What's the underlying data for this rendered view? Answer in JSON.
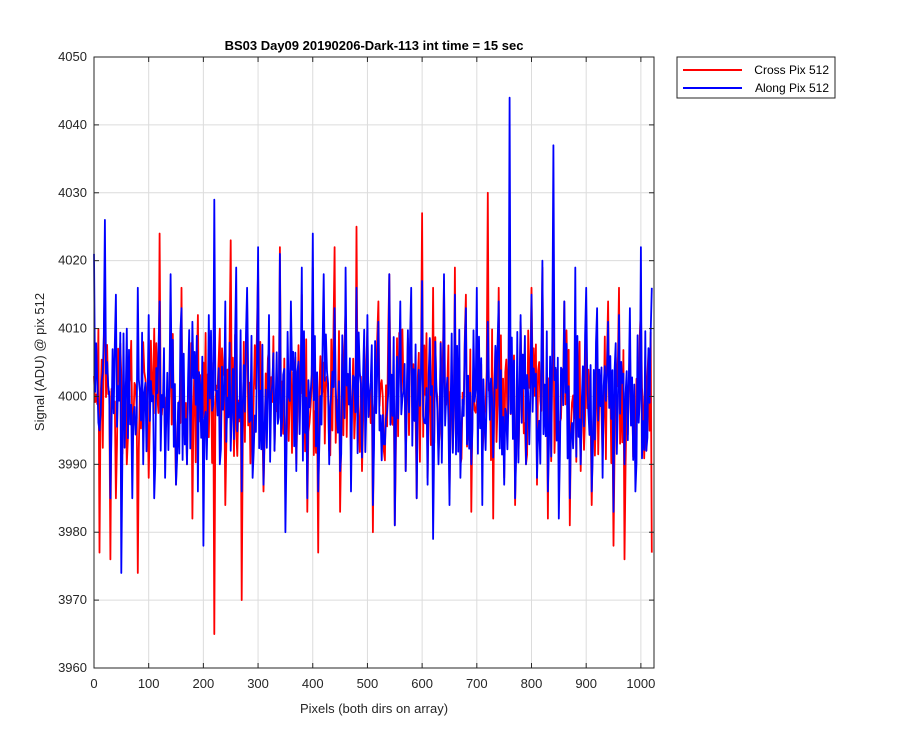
{
  "chart_data": {
    "type": "line",
    "title": "BS03 Day09 20190206-Dark-113 int time = 15 sec",
    "xlabel": "Pixels (both dirs on array)",
    "ylabel": "Signal (ADU) @ pix 512",
    "xlim": [
      0,
      1024
    ],
    "ylim": [
      3960,
      4050
    ],
    "x_ticks": [
      0,
      100,
      200,
      300,
      400,
      500,
      600,
      700,
      800,
      900,
      1000
    ],
    "y_ticks": [
      3960,
      3970,
      3980,
      3990,
      4000,
      4010,
      4020,
      4030,
      4040,
      4050
    ],
    "grid": true,
    "legend_location": "outside-top-right",
    "series": [
      {
        "name": "Cross Pix 512",
        "color": "#ff0000",
        "x": [
          0,
          10,
          20,
          30,
          40,
          50,
          60,
          70,
          80,
          90,
          100,
          110,
          120,
          130,
          140,
          150,
          160,
          170,
          180,
          190,
          200,
          210,
          220,
          230,
          240,
          250,
          260,
          270,
          280,
          290,
          300,
          310,
          320,
          330,
          340,
          350,
          360,
          370,
          380,
          390,
          400,
          410,
          420,
          430,
          440,
          450,
          460,
          470,
          480,
          490,
          500,
          510,
          520,
          530,
          540,
          550,
          560,
          570,
          580,
          590,
          600,
          610,
          620,
          630,
          640,
          650,
          660,
          670,
          680,
          690,
          700,
          710,
          720,
          730,
          740,
          750,
          760,
          770,
          780,
          790,
          800,
          810,
          820,
          830,
          840,
          850,
          860,
          870,
          880,
          890,
          900,
          910,
          920,
          930,
          940,
          950,
          960,
          970,
          980,
          990,
          1000,
          1010,
          1020
        ],
        "values": [
          4003,
          3977,
          4018,
          3976,
          3985,
          4003,
          3990,
          3995,
          3974,
          4008,
          3988,
          4010,
          4024,
          3992,
          4012,
          3987,
          4016,
          3990,
          3982,
          4012,
          4005,
          3994,
          3965,
          4010,
          3984,
          4023,
          3995,
          3970,
          4014,
          3990,
          4019,
          3986,
          4007,
          3992,
          4022,
          3985,
          4004,
          3990,
          4015,
          3983,
          4019,
          3977,
          4005,
          3992,
          4022,
          3983,
          4013,
          3991,
          4025,
          3989,
          4010,
          3980,
          4014,
          3992,
          4018,
          3981,
          4006,
          3989,
          4011,
          3985,
          4027,
          3988,
          4016,
          3992,
          4017,
          3985,
          4019,
          3990,
          4015,
          3983,
          3999,
          3991,
          4030,
          3982,
          4016,
          3988,
          4019,
          3984,
          4011,
          3990,
          4016,
          3987,
          4019,
          3982,
          4013,
          3990,
          4014,
          3981,
          4006,
          3989,
          4012,
          3984,
          4008,
          3991,
          4014,
          3978,
          4016,
          3976,
          4008,
          3990,
          4013,
          3992,
          3977
        ]
      },
      {
        "name": "Along Pix 512",
        "color": "#0000ff",
        "x": [
          0,
          10,
          20,
          30,
          40,
          50,
          60,
          70,
          80,
          90,
          100,
          110,
          120,
          130,
          140,
          150,
          160,
          170,
          180,
          190,
          200,
          210,
          220,
          230,
          240,
          250,
          260,
          270,
          280,
          290,
          300,
          310,
          320,
          330,
          340,
          350,
          360,
          370,
          380,
          390,
          400,
          410,
          420,
          430,
          440,
          450,
          460,
          470,
          480,
          490,
          500,
          510,
          520,
          530,
          540,
          550,
          560,
          570,
          580,
          590,
          600,
          610,
          620,
          630,
          640,
          650,
          660,
          670,
          680,
          690,
          700,
          710,
          720,
          730,
          740,
          750,
          760,
          770,
          780,
          790,
          800,
          810,
          820,
          830,
          840,
          850,
          860,
          870,
          880,
          890,
          900,
          910,
          920,
          930,
          940,
          950,
          960,
          970,
          980,
          990,
          1000,
          1010,
          1020
        ],
        "values": [
          4021,
          3995,
          4026,
          3985,
          4015,
          3974,
          4010,
          3985,
          4016,
          3990,
          4012,
          3985,
          4014,
          3988,
          4018,
          3987,
          4013,
          3990,
          4011,
          3986,
          3978,
          4012,
          4029,
          3990,
          4014,
          3992,
          4019,
          3986,
          4016,
          3988,
          4022,
          3987,
          4012,
          3992,
          4021,
          3980,
          4014,
          3989,
          4019,
          3985,
          4024,
          3986,
          4018,
          3990,
          4013,
          3989,
          4019,
          3986,
          4016,
          3991,
          4012,
          3984,
          4011,
          3993,
          4018,
          3981,
          4014,
          3989,
          4016,
          3985,
          4017,
          3987,
          3979,
          3990,
          4018,
          3984,
          4015,
          3988,
          4013,
          3990,
          4016,
          3984,
          4011,
          3991,
          4014,
          3987,
          4044,
          3985,
          4012,
          3990,
          4015,
          3988,
          4020,
          3986,
          4037,
          3982,
          4014,
          3985,
          4019,
          3990,
          4016,
          3986,
          4013,
          3988,
          4011,
          3983,
          4012,
          3990,
          4013,
          3986,
          4022,
          3992,
          4016
        ]
      }
    ]
  }
}
